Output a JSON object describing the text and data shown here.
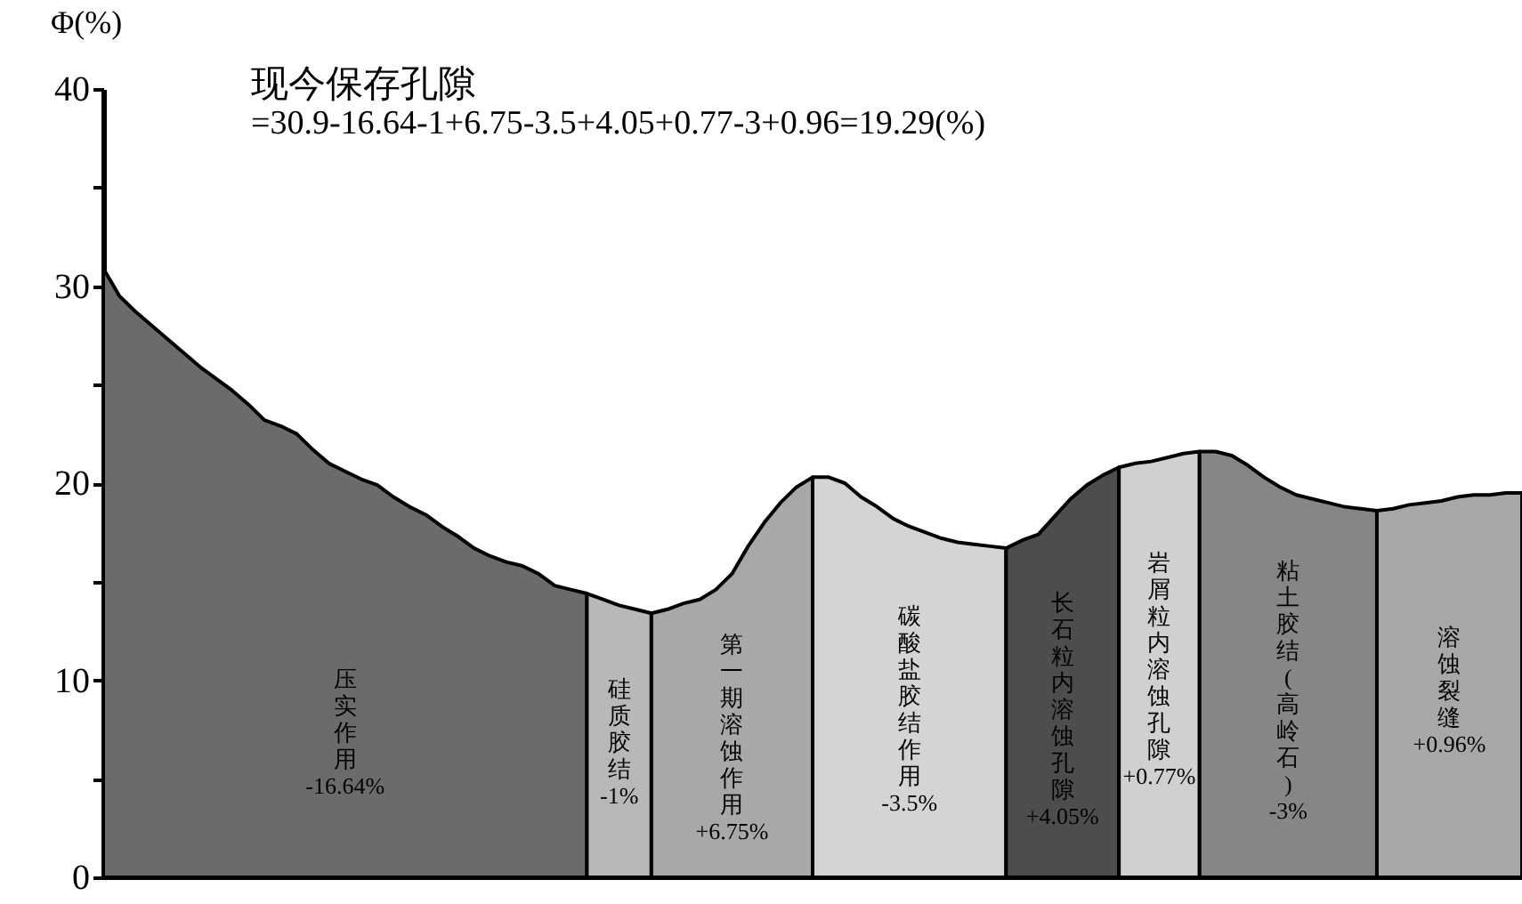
{
  "chart_data": {
    "type": "area",
    "title": "现今保存孔隙",
    "subtitle": "=30.9-16.64-1+6.75-3.5+4.05+0.77-3+0.96=19.29(%)",
    "ylabel": "Φ(%)",
    "categories": [
      null,
      null,
      null,
      null,
      null,
      null,
      null,
      null,
      null,
      null,
      null,
      null,
      null,
      null,
      null,
      null,
      null,
      null,
      null,
      null,
      null,
      null,
      null,
      null,
      null,
      null,
      null,
      null,
      null,
      null,
      null,
      null,
      null,
      null,
      null,
      null,
      null,
      null,
      null,
      null,
      null,
      null,
      null,
      null,
      null,
      null,
      null,
      null,
      null,
      null,
      null,
      null,
      null,
      null,
      null,
      null,
      null,
      null,
      null,
      null,
      null,
      null,
      null,
      null,
      null,
      null,
      null,
      null,
      null,
      null,
      null,
      null,
      null,
      null,
      null,
      null,
      null,
      null,
      null,
      null,
      null,
      null,
      null,
      null,
      null,
      null,
      null,
      null,
      null
    ],
    "ylim": [
      0,
      40
    ],
    "yticks": [
      0,
      {
        "value": 5,
        "label": null
      },
      10,
      {
        "value": 15,
        "label": null
      },
      20,
      {
        "value": 25,
        "label": null
      },
      30,
      {
        "value": 35,
        "label": null
      },
      40
    ],
    "series": [
      {
        "name": "压实作用 -16.64%",
        "color": "#6b6b6b",
        "values": [
          30.9,
          29.5,
          28.7,
          28.0,
          27.3,
          26.6,
          25.9,
          25.3,
          24.7,
          24.0,
          23.2,
          22.9,
          22.5,
          21.7,
          21.0,
          20.6,
          20.2,
          19.9,
          19.3,
          18.8,
          18.4,
          17.8,
          17.3,
          16.7,
          16.3,
          16.0,
          15.8,
          15.4,
          14.8,
          14.6,
          14.4,
          null,
          null,
          null,
          null,
          null,
          null,
          null,
          null,
          null,
          null,
          null,
          null,
          null,
          null,
          null,
          null,
          null,
          null,
          null,
          null,
          null,
          null,
          null,
          null,
          null,
          null,
          null,
          null,
          null,
          null,
          null,
          null,
          null,
          null,
          null,
          null,
          null,
          null,
          null,
          null,
          null,
          null,
          null,
          null,
          null,
          null,
          null,
          null,
          null,
          null,
          null,
          null,
          null,
          null,
          null,
          null,
          null,
          null
        ]
      },
      {
        "name": "硅质胶结 -1%",
        "color": "#b8b8b8",
        "values": [
          null,
          null,
          null,
          null,
          null,
          null,
          null,
          null,
          null,
          null,
          null,
          null,
          null,
          null,
          null,
          null,
          null,
          null,
          null,
          null,
          null,
          null,
          null,
          null,
          null,
          null,
          null,
          null,
          null,
          null,
          14.4,
          14.1,
          13.8,
          13.6,
          13.4,
          null,
          null,
          null,
          null,
          null,
          null,
          null,
          null,
          null,
          null,
          null,
          null,
          null,
          null,
          null,
          null,
          null,
          null,
          null,
          null,
          null,
          null,
          null,
          null,
          null,
          null,
          null,
          null,
          null,
          null,
          null,
          null,
          null,
          null,
          null,
          null,
          null,
          null,
          null,
          null,
          null,
          null,
          null,
          null,
          null,
          null,
          null,
          null,
          null,
          null,
          null,
          null,
          null,
          null
        ]
      },
      {
        "name": "第一期溶蚀作用 +6.75%",
        "color": "#a8a8a8",
        "values": [
          null,
          null,
          null,
          null,
          null,
          null,
          null,
          null,
          null,
          null,
          null,
          null,
          null,
          null,
          null,
          null,
          null,
          null,
          null,
          null,
          null,
          null,
          null,
          null,
          null,
          null,
          null,
          null,
          null,
          null,
          null,
          null,
          null,
          null,
          13.4,
          13.6,
          13.9,
          14.1,
          14.6,
          15.4,
          16.8,
          18.0,
          19.0,
          19.8,
          20.3,
          null,
          null,
          null,
          null,
          null,
          null,
          null,
          null,
          null,
          null,
          null,
          null,
          null,
          null,
          null,
          null,
          null,
          null,
          null,
          null,
          null,
          null,
          null,
          null,
          null,
          null,
          null,
          null,
          null,
          null,
          null,
          null,
          null,
          null,
          null,
          null,
          null,
          null,
          null,
          null,
          null,
          null,
          null,
          null
        ]
      },
      {
        "name": "碳酸盐胶结作用 -3.5%",
        "color": "#d4d4d4",
        "values": [
          null,
          null,
          null,
          null,
          null,
          null,
          null,
          null,
          null,
          null,
          null,
          null,
          null,
          null,
          null,
          null,
          null,
          null,
          null,
          null,
          null,
          null,
          null,
          null,
          null,
          null,
          null,
          null,
          null,
          null,
          null,
          null,
          null,
          null,
          null,
          null,
          null,
          null,
          null,
          null,
          null,
          null,
          null,
          null,
          20.3,
          20.3,
          20.0,
          19.3,
          18.8,
          18.2,
          17.8,
          17.5,
          17.2,
          17.0,
          16.9,
          16.8,
          16.7,
          null,
          null,
          null,
          null,
          null,
          null,
          null,
          null,
          null,
          null,
          null,
          null,
          null,
          null,
          null,
          null,
          null,
          null,
          null,
          null,
          null,
          null,
          null,
          null,
          null,
          null,
          null,
          null,
          null,
          null,
          null,
          null
        ]
      },
      {
        "name": "长石粒内溶蚀孔隙 +4.05%",
        "color": "#4d4d4d",
        "values": [
          null,
          null,
          null,
          null,
          null,
          null,
          null,
          null,
          null,
          null,
          null,
          null,
          null,
          null,
          null,
          null,
          null,
          null,
          null,
          null,
          null,
          null,
          null,
          null,
          null,
          null,
          null,
          null,
          null,
          null,
          null,
          null,
          null,
          null,
          null,
          null,
          null,
          null,
          null,
          null,
          null,
          null,
          null,
          null,
          null,
          null,
          null,
          null,
          null,
          null,
          null,
          null,
          null,
          null,
          null,
          null,
          16.7,
          17.1,
          17.4,
          18.3,
          19.2,
          19.9,
          20.4,
          20.8,
          null,
          null,
          null,
          null,
          null,
          null,
          null,
          null,
          null,
          null,
          null,
          null,
          null,
          null,
          null,
          null,
          null,
          null,
          null,
          null,
          null,
          null,
          null,
          null,
          null
        ]
      },
      {
        "name": "岩屑粒内溶蚀孔隙 +0.77%",
        "color": "#d0d0d0",
        "values": [
          null,
          null,
          null,
          null,
          null,
          null,
          null,
          null,
          null,
          null,
          null,
          null,
          null,
          null,
          null,
          null,
          null,
          null,
          null,
          null,
          null,
          null,
          null,
          null,
          null,
          null,
          null,
          null,
          null,
          null,
          null,
          null,
          null,
          null,
          null,
          null,
          null,
          null,
          null,
          null,
          null,
          null,
          null,
          null,
          null,
          null,
          null,
          null,
          null,
          null,
          null,
          null,
          null,
          null,
          null,
          null,
          null,
          null,
          null,
          null,
          null,
          null,
          null,
          20.8,
          21.0,
          21.1,
          21.3,
          21.5,
          21.6,
          null,
          null,
          null,
          null,
          null,
          null,
          null,
          null,
          null,
          null,
          null,
          null,
          null,
          null,
          null,
          null,
          null,
          null,
          null,
          null
        ]
      },
      {
        "name": "粘土胶结(高岭石) -3%",
        "color": "#868686",
        "values": [
          null,
          null,
          null,
          null,
          null,
          null,
          null,
          null,
          null,
          null,
          null,
          null,
          null,
          null,
          null,
          null,
          null,
          null,
          null,
          null,
          null,
          null,
          null,
          null,
          null,
          null,
          null,
          null,
          null,
          null,
          null,
          null,
          null,
          null,
          null,
          null,
          null,
          null,
          null,
          null,
          null,
          null,
          null,
          null,
          null,
          null,
          null,
          null,
          null,
          null,
          null,
          null,
          null,
          null,
          null,
          null,
          null,
          null,
          null,
          null,
          null,
          null,
          null,
          null,
          null,
          null,
          null,
          null,
          21.6,
          21.6,
          21.4,
          20.9,
          20.3,
          19.8,
          19.4,
          19.2,
          19.0,
          18.8,
          18.7,
          18.6,
          null,
          null,
          null,
          null,
          null,
          null,
          null,
          null,
          null
        ]
      },
      {
        "name": "溶蚀裂缝 +0.96%",
        "color": "#a8a8a8",
        "values": [
          null,
          null,
          null,
          null,
          null,
          null,
          null,
          null,
          null,
          null,
          null,
          null,
          null,
          null,
          null,
          null,
          null,
          null,
          null,
          null,
          null,
          null,
          null,
          null,
          null,
          null,
          null,
          null,
          null,
          null,
          null,
          null,
          null,
          null,
          null,
          null,
          null,
          null,
          null,
          null,
          null,
          null,
          null,
          null,
          null,
          null,
          null,
          null,
          null,
          null,
          null,
          null,
          null,
          null,
          null,
          null,
          null,
          null,
          null,
          null,
          null,
          null,
          null,
          null,
          null,
          null,
          null,
          null,
          null,
          null,
          null,
          null,
          null,
          null,
          null,
          null,
          null,
          null,
          null,
          18.6,
          18.7,
          18.9,
          19.0,
          19.1,
          19.3,
          19.4,
          19.4,
          19.5,
          19.5
        ]
      }
    ]
  }
}
